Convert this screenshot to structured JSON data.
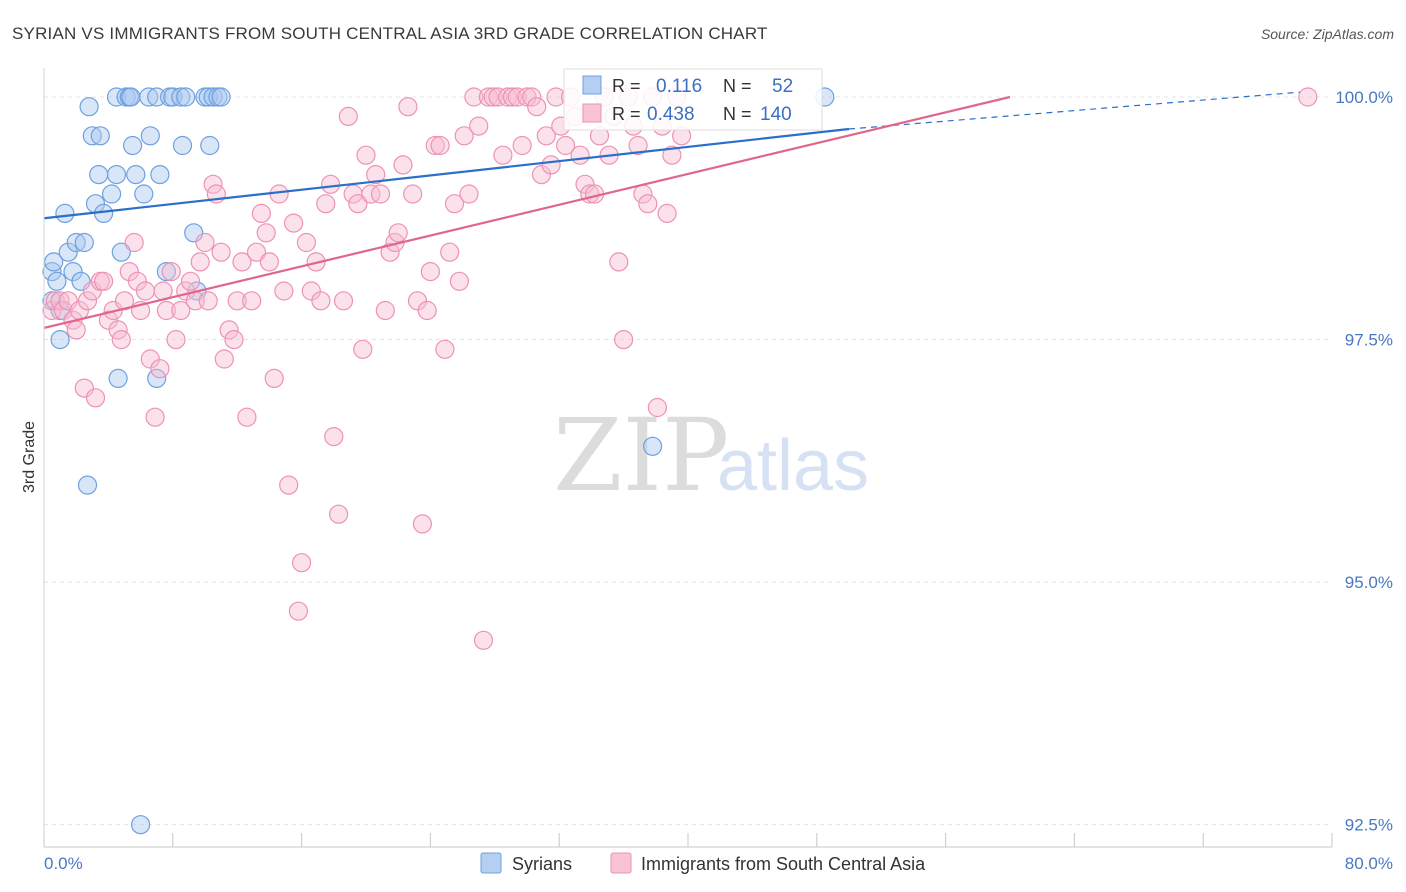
{
  "chart_data": {
    "type": "scatter",
    "title": "SYRIAN VS IMMIGRANTS FROM SOUTH CENTRAL ASIA 3RD GRADE CORRELATION CHART",
    "source": "Source: ZipAtlas.com",
    "xlabel": "",
    "ylabel": "3rd Grade",
    "xlim": [
      0,
      80
    ],
    "ylim": [
      90.0,
      100.4
    ],
    "x_tick_labels": [
      "0.0%",
      "80.0%"
    ],
    "y_ticks": [
      {
        "value": 100.0,
        "label": "100.0%"
      },
      {
        "value": 97.5,
        "label": "97.5%"
      },
      {
        "value": 95.0,
        "label": "95.0%"
      },
      {
        "value": 92.5,
        "label": "92.5%"
      }
    ],
    "grid": true,
    "legend_position": "bottom",
    "stats": {
      "r_label": "R =",
      "n_label": "N =",
      "rows": [
        {
          "series": "Syrians",
          "r": "0.116",
          "n": "52"
        },
        {
          "series": "Immigrants from South Central Asia",
          "r": "0.438",
          "n": "140"
        }
      ]
    },
    "series": [
      {
        "name": "Syrians",
        "color": "#6fa0e0",
        "fill": "#a9c7ef",
        "trend_color": "#2a6fca",
        "trend": {
          "x0": 0,
          "y0": 98.75,
          "x1": 50,
          "y1": 99.67,
          "dash_x1": 78,
          "dash_y1": 100.05
        },
        "points": [
          [
            0.5,
            98.2
          ],
          [
            0.5,
            97.9
          ],
          [
            0.6,
            98.3
          ],
          [
            0.8,
            98.1
          ],
          [
            1,
            97.8
          ],
          [
            1,
            97.5
          ],
          [
            1.3,
            98.8
          ],
          [
            1.5,
            98.4
          ],
          [
            1.8,
            98.2
          ],
          [
            2,
            98.5
          ],
          [
            2.3,
            98.1
          ],
          [
            2.5,
            98.5
          ],
          [
            2.7,
            96.0
          ],
          [
            2.8,
            99.9
          ],
          [
            3,
            99.6
          ],
          [
            3.2,
            98.9
          ],
          [
            3.4,
            99.2
          ],
          [
            3.5,
            99.6
          ],
          [
            3.7,
            98.8
          ],
          [
            4.2,
            99.0
          ],
          [
            4.5,
            100.0
          ],
          [
            4.5,
            99.2
          ],
          [
            4.6,
            97.1
          ],
          [
            4.8,
            98.4
          ],
          [
            5.1,
            100.0
          ],
          [
            5.3,
            100.0
          ],
          [
            5.4,
            100.0
          ],
          [
            5.5,
            99.5
          ],
          [
            5.7,
            99.2
          ],
          [
            6,
            92.5
          ],
          [
            6.2,
            99.0
          ],
          [
            6.5,
            100.0
          ],
          [
            6.6,
            99.6
          ],
          [
            7,
            97.1
          ],
          [
            7,
            100.0
          ],
          [
            7.2,
            99.2
          ],
          [
            7.6,
            98.2
          ],
          [
            7.8,
            100.0
          ],
          [
            8,
            100.0
          ],
          [
            8.5,
            100.0
          ],
          [
            8.6,
            99.5
          ],
          [
            8.8,
            100.0
          ],
          [
            9.3,
            98.6
          ],
          [
            9.5,
            98.0
          ],
          [
            10,
            100.0
          ],
          [
            10.2,
            100.0
          ],
          [
            10.3,
            99.5
          ],
          [
            10.5,
            100.0
          ],
          [
            10.8,
            100.0
          ],
          [
            11,
            100.0
          ],
          [
            37.8,
            96.4
          ],
          [
            48.5,
            100.0
          ]
        ]
      },
      {
        "name": "Immigrants from South Central Asia",
        "color": "#ee92b4",
        "fill": "#f6bcd2",
        "trend_color": "#e0658f",
        "trend": {
          "x0": 0,
          "y0": 97.62,
          "x1": 60,
          "y1": 100.0
        },
        "points": [
          [
            0.5,
            97.8
          ],
          [
            0.7,
            97.9
          ],
          [
            1,
            97.9
          ],
          [
            1.2,
            97.8
          ],
          [
            1.5,
            97.9
          ],
          [
            1.8,
            97.7
          ],
          [
            2,
            97.6
          ],
          [
            2.2,
            97.8
          ],
          [
            2.5,
            97.0
          ],
          [
            2.7,
            97.9
          ],
          [
            3,
            98.0
          ],
          [
            3.2,
            96.9
          ],
          [
            3.5,
            98.1
          ],
          [
            3.7,
            98.1
          ],
          [
            4,
            97.7
          ],
          [
            4.3,
            97.8
          ],
          [
            4.6,
            97.6
          ],
          [
            4.8,
            97.5
          ],
          [
            5,
            97.9
          ],
          [
            5.3,
            98.2
          ],
          [
            5.6,
            98.5
          ],
          [
            5.8,
            98.1
          ],
          [
            6,
            97.8
          ],
          [
            6.3,
            98.0
          ],
          [
            6.6,
            97.3
          ],
          [
            6.9,
            96.7
          ],
          [
            7.2,
            97.2
          ],
          [
            7.4,
            98.0
          ],
          [
            7.6,
            97.8
          ],
          [
            7.9,
            98.2
          ],
          [
            8.2,
            97.5
          ],
          [
            8.5,
            97.8
          ],
          [
            8.8,
            98.0
          ],
          [
            9.1,
            98.1
          ],
          [
            9.4,
            97.9
          ],
          [
            9.7,
            98.3
          ],
          [
            10,
            98.5
          ],
          [
            10.2,
            97.9
          ],
          [
            10.5,
            99.1
          ],
          [
            10.7,
            99.0
          ],
          [
            11,
            98.4
          ],
          [
            11.2,
            97.3
          ],
          [
            11.5,
            97.6
          ],
          [
            11.8,
            97.5
          ],
          [
            12,
            97.9
          ],
          [
            12.3,
            98.3
          ],
          [
            12.6,
            96.7
          ],
          [
            12.9,
            97.9
          ],
          [
            13.2,
            98.4
          ],
          [
            13.5,
            98.8
          ],
          [
            13.8,
            98.6
          ],
          [
            14,
            98.3
          ],
          [
            14.3,
            97.1
          ],
          [
            14.6,
            99.0
          ],
          [
            14.9,
            98.0
          ],
          [
            15.2,
            96.0
          ],
          [
            15.5,
            98.7
          ],
          [
            15.8,
            94.7
          ],
          [
            16,
            95.2
          ],
          [
            16.3,
            98.5
          ],
          [
            16.6,
            98.0
          ],
          [
            16.9,
            98.3
          ],
          [
            17.2,
            97.9
          ],
          [
            17.5,
            98.9
          ],
          [
            17.8,
            99.1
          ],
          [
            18,
            96.5
          ],
          [
            18.3,
            95.7
          ],
          [
            18.6,
            97.9
          ],
          [
            18.9,
            99.8
          ],
          [
            19.2,
            99.0
          ],
          [
            19.5,
            98.9
          ],
          [
            19.8,
            97.4
          ],
          [
            20,
            99.4
          ],
          [
            20.3,
            99.0
          ],
          [
            20.6,
            99.2
          ],
          [
            20.9,
            99.0
          ],
          [
            21.2,
            97.8
          ],
          [
            21.5,
            98.4
          ],
          [
            21.8,
            98.5
          ],
          [
            22,
            98.6
          ],
          [
            22.3,
            99.3
          ],
          [
            22.6,
            99.9
          ],
          [
            22.9,
            99.0
          ],
          [
            23.2,
            97.9
          ],
          [
            23.5,
            95.6
          ],
          [
            23.8,
            97.8
          ],
          [
            24,
            98.2
          ],
          [
            24.3,
            99.5
          ],
          [
            24.6,
            99.5
          ],
          [
            24.9,
            97.4
          ],
          [
            25.2,
            98.4
          ],
          [
            25.5,
            98.9
          ],
          [
            25.8,
            98.1
          ],
          [
            26.1,
            99.6
          ],
          [
            26.4,
            99.0
          ],
          [
            26.7,
            100.0
          ],
          [
            27,
            99.7
          ],
          [
            27.3,
            94.4
          ],
          [
            27.6,
            100.0
          ],
          [
            27.9,
            100.0
          ],
          [
            28.2,
            100.0
          ],
          [
            28.5,
            99.4
          ],
          [
            28.8,
            100.0
          ],
          [
            29.1,
            100.0
          ],
          [
            29.4,
            100.0
          ],
          [
            29.7,
            99.5
          ],
          [
            30,
            100.0
          ],
          [
            30.3,
            100.0
          ],
          [
            30.6,
            99.9
          ],
          [
            30.9,
            99.2
          ],
          [
            31.2,
            99.6
          ],
          [
            31.5,
            99.3
          ],
          [
            31.8,
            100.0
          ],
          [
            32.1,
            99.7
          ],
          [
            32.4,
            99.5
          ],
          [
            32.7,
            100.0
          ],
          [
            33,
            99.8
          ],
          [
            33.3,
            99.4
          ],
          [
            33.6,
            99.1
          ],
          [
            33.9,
            99.0
          ],
          [
            34.2,
            99.0
          ],
          [
            34.5,
            99.6
          ],
          [
            34.8,
            100.0
          ],
          [
            35.1,
            99.4
          ],
          [
            35.4,
            99.8
          ],
          [
            35.7,
            98.3
          ],
          [
            36,
            97.5
          ],
          [
            36.3,
            100.0
          ],
          [
            36.6,
            99.7
          ],
          [
            36.9,
            99.5
          ],
          [
            37.2,
            99.0
          ],
          [
            37.5,
            98.9
          ],
          [
            37.8,
            100.0
          ],
          [
            38.1,
            96.8
          ],
          [
            38.4,
            99.7
          ],
          [
            38.7,
            98.8
          ],
          [
            39,
            99.4
          ],
          [
            39.3,
            100.0
          ],
          [
            39.6,
            99.6
          ],
          [
            78.5,
            100.0
          ]
        ]
      }
    ]
  },
  "watermark": {
    "zip": "ZIP",
    "atlas": "atlas"
  }
}
